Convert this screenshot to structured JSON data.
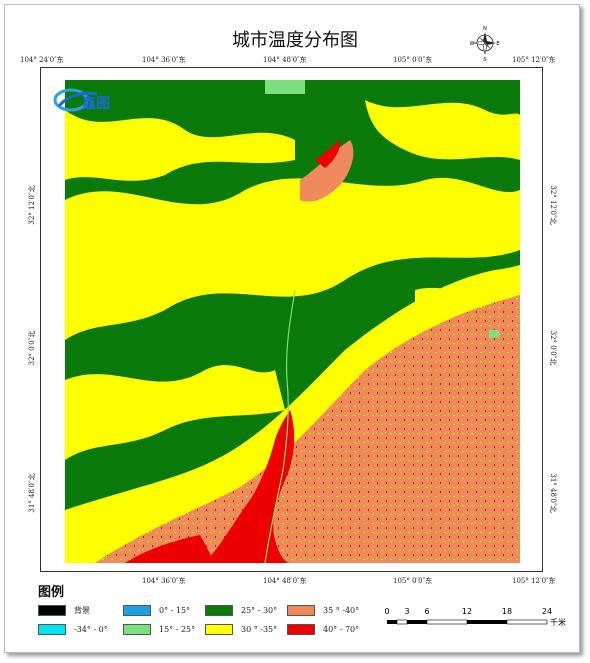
{
  "title": "城市温度分布图",
  "compass": {
    "n": "N",
    "s": "S",
    "e": "E",
    "w": "W"
  },
  "top_ticks": [
    "104° 24′0″东",
    "104° 36′0″东",
    "104° 48′0″东",
    "105° 0′0″东",
    "105° 12′0″东"
  ],
  "bottom_ticks": [
    "104° 36′0″东",
    "104° 48′0″东",
    "105° 0′0″东",
    "105° 12′0″东"
  ],
  "left_ticks": [
    "32° 12′0″北",
    "32° 0′0″北",
    "31° 48′0″北"
  ],
  "right_ticks": [
    "32° 12′0″北",
    "32° 0′0″北",
    "31° 48′0″北"
  ],
  "logo_text": "鑫图",
  "legend": {
    "title": "图例",
    "items": [
      {
        "label": "背景",
        "color": "#000000"
      },
      {
        "label": "-34° - 0°",
        "color": "#00e5ee"
      },
      {
        "label": "0° - 15°",
        "color": "#1e9fe6"
      },
      {
        "label": "15° - 25°",
        "color": "#7ddf7d"
      },
      {
        "label": "25° - 30°",
        "color": "#0a7a0a"
      },
      {
        "label": "30 ° -35°",
        "color": "#ffff00"
      },
      {
        "label": "35 ° -40°",
        "color": "#f08a5a"
      },
      {
        "label": "40° - 70°",
        "color": "#ee0000"
      }
    ]
  },
  "scale": {
    "ticks": [
      "0",
      "3",
      "6",
      "12",
      "18",
      "24"
    ],
    "unit": "千米"
  }
}
